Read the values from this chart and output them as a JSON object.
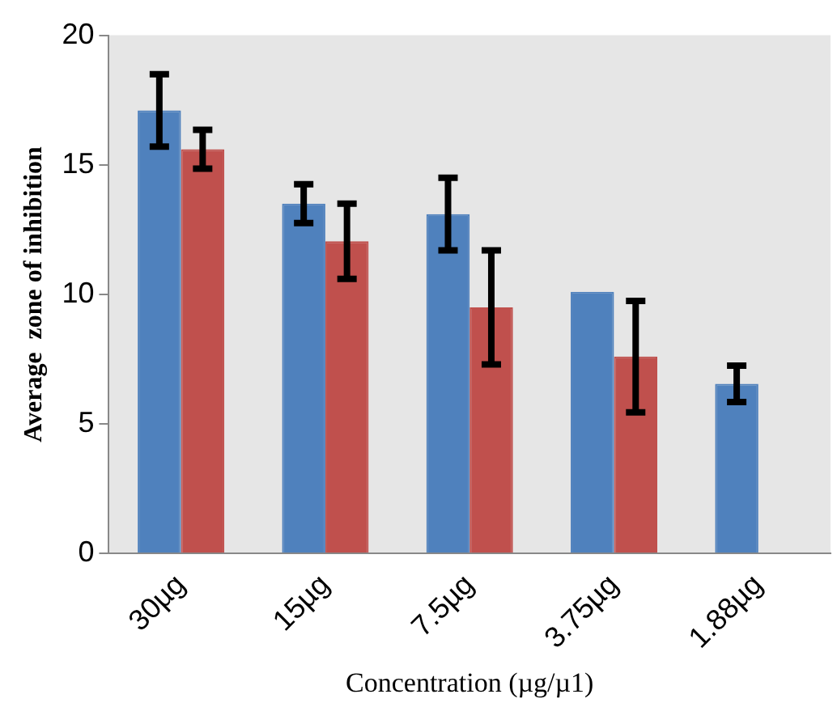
{
  "chart_data": {
    "type": "bar",
    "xlabel": "Concentration (µg/µ1)",
    "ylabel": "Average  zone of inhibition",
    "categories": [
      "30µg",
      "15µg",
      "7.5µg",
      "3.75µg",
      "1.88µg"
    ],
    "series": [
      {
        "color": "#4f81bd",
        "values": [
          17.1,
          13.5,
          13.1,
          10.1,
          6.55
        ],
        "errors": [
          1.4,
          0.75,
          1.4,
          null,
          0.7
        ]
      },
      {
        "color": "#c0504d",
        "values": [
          15.6,
          12.05,
          9.5,
          7.6,
          null
        ],
        "errors": [
          0.75,
          1.45,
          2.2,
          2.15,
          null
        ]
      }
    ],
    "ylim": [
      0,
      20
    ],
    "yticks": [
      0,
      5,
      10,
      15,
      20
    ],
    "grid": false,
    "legend": false
  }
}
